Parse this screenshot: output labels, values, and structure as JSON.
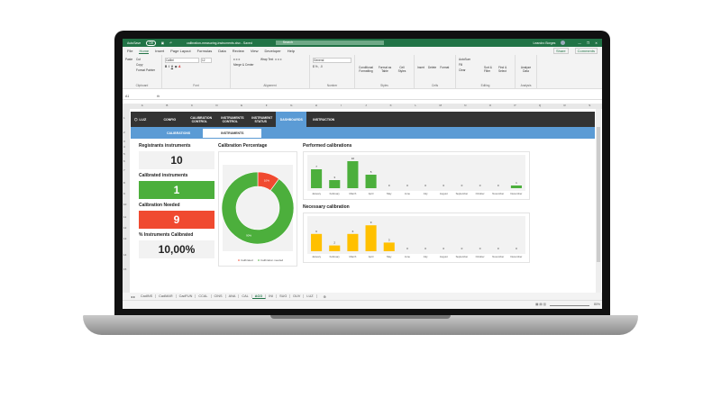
{
  "titlebar": {
    "autosave": "AutoSave",
    "autosave_state": "Off",
    "filename": "calibration-measuring-instruments.xlsx - Saved",
    "search": "Search",
    "user": "Leandro Borges"
  },
  "menu": [
    "File",
    "Home",
    "Insert",
    "Page Layout",
    "Formulas",
    "Data",
    "Review",
    "View",
    "Developer",
    "Help"
  ],
  "share": "Share",
  "comments": "Comments",
  "ribbon": {
    "clipboard": {
      "label": "Clipboard",
      "items": [
        "Paste",
        "Cut",
        "Copy",
        "Format Painter"
      ]
    },
    "font": {
      "label": "Font",
      "name": "Calibri",
      "size": "12"
    },
    "alignment": {
      "label": "Alignment",
      "items": [
        "Wrap Text",
        "Merge & Center"
      ]
    },
    "number": {
      "label": "Number",
      "format": "General"
    },
    "styles": {
      "label": "Styles",
      "items": [
        "Conditional Formatting",
        "Format as Table",
        "Cell Styles"
      ]
    },
    "cells": {
      "label": "Cells",
      "items": [
        "Insert",
        "Delete",
        "Format"
      ]
    },
    "editing": {
      "label": "Editing",
      "items": [
        "AutoSum",
        "Fill",
        "Clear",
        "Sort & Filter",
        "Find & Select"
      ]
    },
    "analysis": {
      "label": "Analysis",
      "items": [
        "Analyze Data"
      ]
    }
  },
  "formula": {
    "cell": "A1",
    "fx": "fx"
  },
  "columns": [
    "A",
    "B",
    "C",
    "D",
    "E",
    "F",
    "G",
    "H",
    "I",
    "J",
    "K",
    "L",
    "M",
    "N",
    "O",
    "P",
    "Q",
    "R",
    "S"
  ],
  "rows": [
    "1",
    "2",
    "3",
    "4",
    "5",
    "6",
    "7",
    "8",
    "9",
    "10",
    "11",
    "12",
    "13",
    "14",
    "15"
  ],
  "nav": {
    "logo": "LUZ",
    "items": [
      "CONFIG",
      "CALIBRATION CONTROL",
      "INSTRUMENTS CONTROL",
      "INSTRUMENT STATUS",
      "DASHBOARDS",
      "INSTRUCTION"
    ],
    "active": 4
  },
  "subnav": {
    "items": [
      "CALIBRATIONS",
      "INSTRUMENTS"
    ],
    "active": 1
  },
  "kpis": [
    {
      "label": "Registrants instruments",
      "value": "10",
      "bg": "#f2f2f2",
      "fg": "#222"
    },
    {
      "label": "Calibrated instruments",
      "value": "1",
      "bg": "#4caf3c",
      "fg": "#fff"
    },
    {
      "label": "Calibration Needed",
      "value": "9",
      "bg": "#f04a30",
      "fg": "#fff"
    },
    {
      "label": "% Instruments Calibrated",
      "value": "10,00%",
      "bg": "#f2f2f2",
      "fg": "#222"
    }
  ],
  "chart_data": [
    {
      "type": "pie",
      "title": "Calibration Percentage",
      "donut": true,
      "categories": [
        "Calibrated",
        "Calibration needed"
      ],
      "values": [
        10,
        90
      ],
      "labels": [
        "10%",
        "90%"
      ],
      "colors": [
        "#f04a30",
        "#4caf3c"
      ],
      "legend": "bottom"
    },
    {
      "type": "bar",
      "title": "Performed calibrations",
      "categories": [
        "January",
        "February",
        "March",
        "April",
        "May",
        "June",
        "July",
        "August",
        "September",
        "October",
        "November",
        "December"
      ],
      "values": [
        7,
        3,
        10,
        5,
        0,
        0,
        0,
        0,
        0,
        0,
        0,
        1
      ],
      "color": "#4caf3c"
    },
    {
      "type": "bar",
      "title": "Necessary calibration",
      "categories": [
        "January",
        "February",
        "March",
        "April",
        "May",
        "June",
        "July",
        "August",
        "September",
        "October",
        "November",
        "December"
      ],
      "values": [
        6,
        2,
        6,
        9,
        3,
        0,
        0,
        0,
        0,
        0,
        0,
        0
      ],
      "color": "#ffc000"
    }
  ],
  "sheets": {
    "items": [
      "CadINS",
      "CadMAR",
      "CadFUN",
      "CCAL",
      "CINS",
      "ANA",
      "CAL",
      "ACO",
      "INI",
      "SUG",
      "DUV",
      "LUZ"
    ],
    "active": 7
  },
  "status": {
    "zoom": "80%"
  }
}
